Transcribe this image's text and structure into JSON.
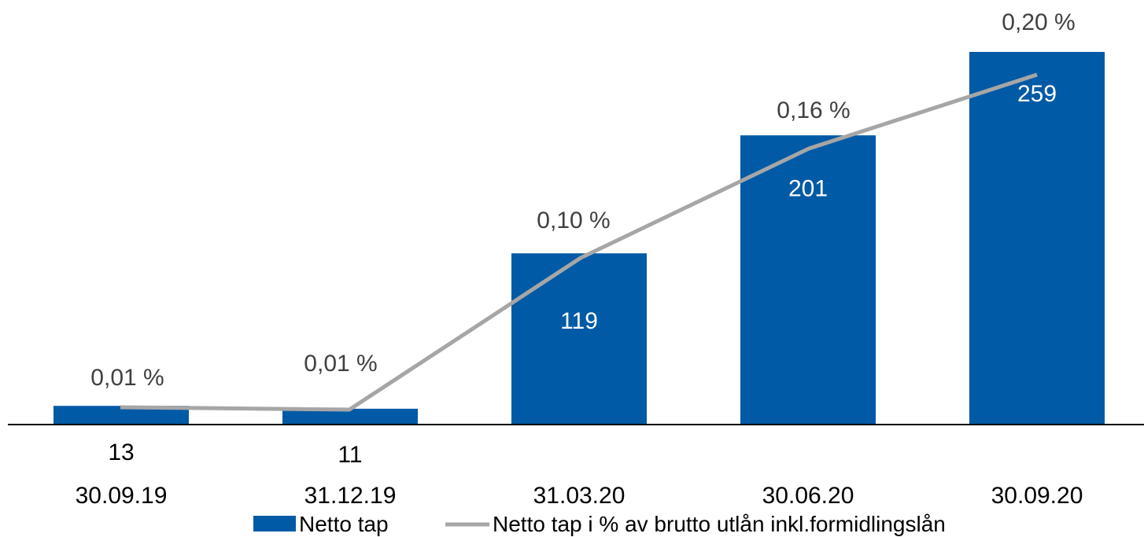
{
  "chart_data": {
    "type": "bar",
    "categories": [
      "30.09.19",
      "31.12.19",
      "31.03.20",
      "30.06.20",
      "30.09.20"
    ],
    "series": [
      {
        "name": "Netto tap",
        "kind": "bar",
        "color": "#005AA5",
        "values": [
          13,
          11,
          119,
          201,
          259
        ],
        "labels": [
          "13",
          "11",
          "119",
          "201",
          "259"
        ]
      },
      {
        "name": "Netto tap i % av brutto utlån inkl.formidlingslån",
        "kind": "line",
        "color": "#A6A6A6",
        "values": [
          0.01,
          0.01,
          0.1,
          0.16,
          0.2
        ],
        "labels": [
          "0,01 %",
          "0,01 %",
          "0,10 %",
          "0,16 %",
          "0,20 %"
        ]
      }
    ],
    "legend": "bottom",
    "grid": false
  }
}
